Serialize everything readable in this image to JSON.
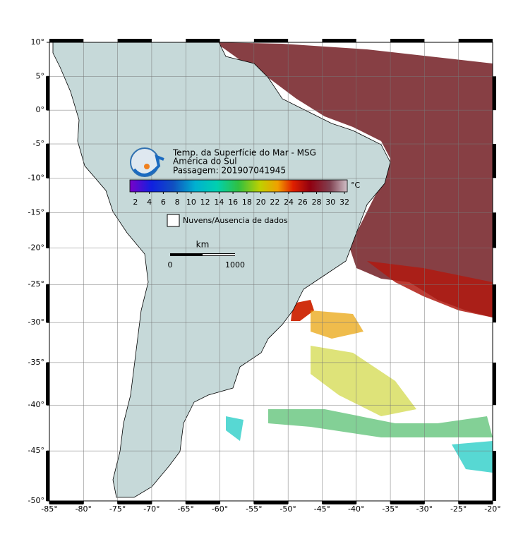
{
  "chart_data": {
    "type": "map",
    "projection": "mercator",
    "title": "Temp. da Superfície do Mar - MSG",
    "subtitle": "América do Sul",
    "pass": "Passagem: 201907041945",
    "xlim": [
      -85,
      -20
    ],
    "ylim": [
      -50,
      10
    ],
    "xticks": [
      {
        "value": -85,
        "label": "-85°"
      },
      {
        "value": -80,
        "label": "-80°"
      },
      {
        "value": -75,
        "label": "-75°"
      },
      {
        "value": -70,
        "label": "-70°"
      },
      {
        "value": -65,
        "label": "-65°"
      },
      {
        "value": -60,
        "label": "-60°"
      },
      {
        "value": -55,
        "label": "-55°"
      },
      {
        "value": -50,
        "label": "-50°"
      },
      {
        "value": -45,
        "label": "-45°"
      },
      {
        "value": -40,
        "label": "-40°"
      },
      {
        "value": -35,
        "label": "-35°"
      },
      {
        "value": -30,
        "label": "-30°"
      },
      {
        "value": -25,
        "label": "-25°"
      },
      {
        "value": -20,
        "label": "-20°"
      }
    ],
    "yticks": [
      {
        "value": 10,
        "label": "10°"
      },
      {
        "value": 5,
        "label": "5°"
      },
      {
        "value": 0,
        "label": "0°"
      },
      {
        "value": -5,
        "label": "-5°"
      },
      {
        "value": -10,
        "label": "-10°"
      },
      {
        "value": -15,
        "label": "-15°"
      },
      {
        "value": -20,
        "label": "-20°"
      },
      {
        "value": -25,
        "label": "-25°"
      },
      {
        "value": -30,
        "label": "-30°"
      },
      {
        "value": -35,
        "label": "-35°"
      },
      {
        "value": -40,
        "label": "-40°"
      },
      {
        "value": -45,
        "label": "-45°"
      },
      {
        "value": -50,
        "label": "-50°"
      }
    ],
    "grid": true,
    "colorbar": {
      "unit": "°C",
      "clim": [
        1.2,
        32.4
      ],
      "ticks": [
        2,
        4,
        6,
        8,
        10,
        12,
        14,
        16,
        18,
        20,
        22,
        24,
        26,
        28,
        30,
        32
      ]
    },
    "legend": "Nuvens/Ausencia de dados",
    "scalebar": {
      "unit": "km",
      "ticks": [
        0,
        1000
      ]
    }
  }
}
